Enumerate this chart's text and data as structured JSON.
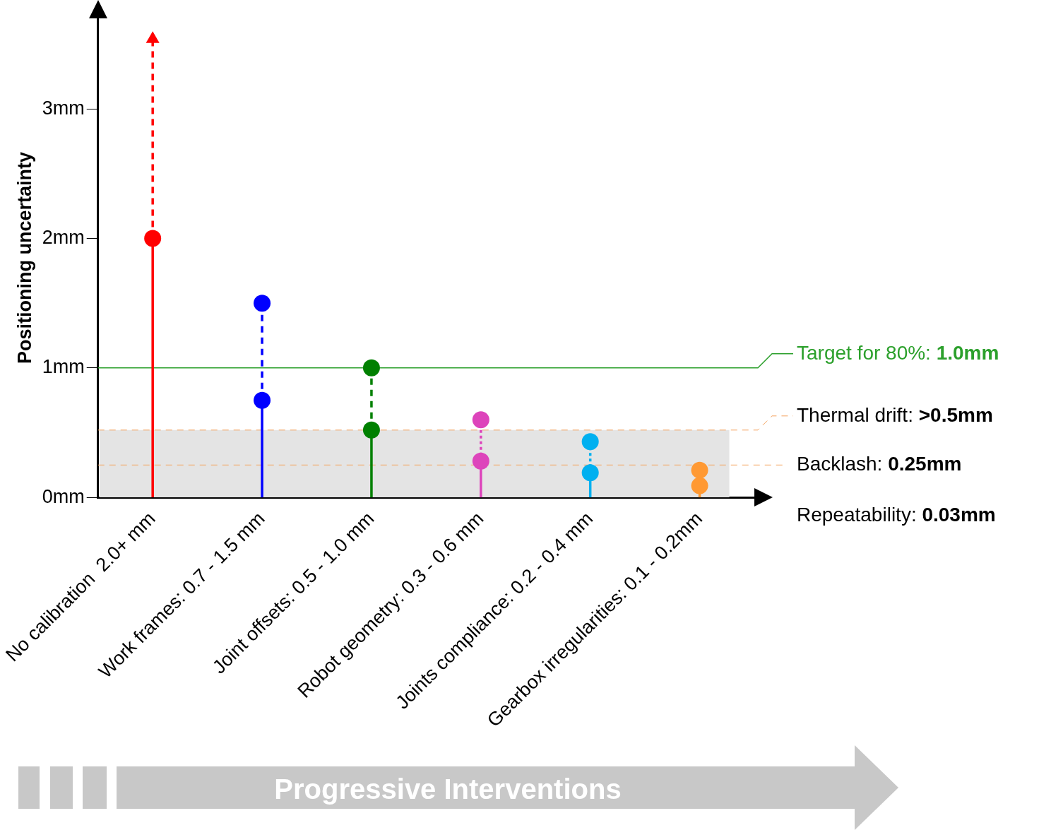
{
  "chart_data": {
    "type": "lollipop",
    "ylabel": "Positioning uncertainty",
    "categories": [
      "No calibration  2.0+ mm",
      "Work frames: 0.7 - 1.5 mm",
      "Joint offsets: 0.5 - 1.0 mm",
      "Robot geometry: 0.3 - 0.6 mm",
      "Joints compliance: 0.2 - 0.4 mm",
      "Gearbox irregularities: 0.1 - 0.2mm"
    ],
    "series": [
      {
        "colors": [
          "#ff0000",
          "#0000ff",
          "#008000",
          "#dd44bb",
          "#00b0f0",
          "#ff9933"
        ],
        "values": [
          2.0,
          0.75,
          0.52,
          0.28,
          0.19,
          0.09
        ],
        "marker": "circle",
        "line_style": "solid"
      },
      {
        "colors": [
          "#ff0000",
          "#0000ff",
          "#008000",
          "#dd44bb",
          "#00b0f0",
          "#ff9933"
        ],
        "values": [
          null,
          1.5,
          1.0,
          null,
          null,
          null
        ],
        "marker": "circle",
        "line_style": "dashed"
      },
      {
        "colors": [
          "#ff0000",
          "#0000ff",
          "#008000",
          "#dd44bb",
          "#00b0f0",
          "#ff9933"
        ],
        "values": [
          null,
          null,
          null,
          0.6,
          0.43,
          0.21
        ],
        "marker": "circle",
        "line_style": "dotted"
      },
      {
        "colors": [
          "#ff0000",
          "#0000ff",
          "#008000",
          "#dd44bb",
          "#00b0f0",
          "#ff9933"
        ],
        "values": [
          3.54,
          null,
          null,
          null,
          null,
          null
        ],
        "marker": "triangle",
        "line_style": "dashed"
      }
    ],
    "ylim": [
      0,
      3.7
    ],
    "yticks": [
      {
        "value": 0,
        "label": "0mm"
      },
      {
        "value": 1,
        "label": "1mm"
      },
      {
        "value": 2,
        "label": "2mm"
      },
      {
        "value": 3,
        "label": "3mm"
      }
    ],
    "ref_lines": [
      {
        "axis": "y",
        "value": 1.0,
        "label": "Target for 80%: 1.0mm",
        "color": "#2ca02c",
        "line_style": "solid"
      },
      {
        "axis": "y",
        "value": 0.52,
        "label": "Thermal drift: >0.5mm",
        "color": "#f4a460",
        "line_style": "dashed"
      },
      {
        "axis": "y",
        "value": 0.25,
        "label": "Backlash: 0.25mm",
        "color": "#f4a460",
        "line_style": "dashed"
      }
    ],
    "bands": [
      {
        "axis": "y",
        "from": 0,
        "to": 0.52,
        "color": "#e4e4e4"
      }
    ],
    "annotations": [
      "Repeatability: 0.03mm",
      "Progressive Interventions"
    ],
    "grid": false,
    "legend": false
  }
}
